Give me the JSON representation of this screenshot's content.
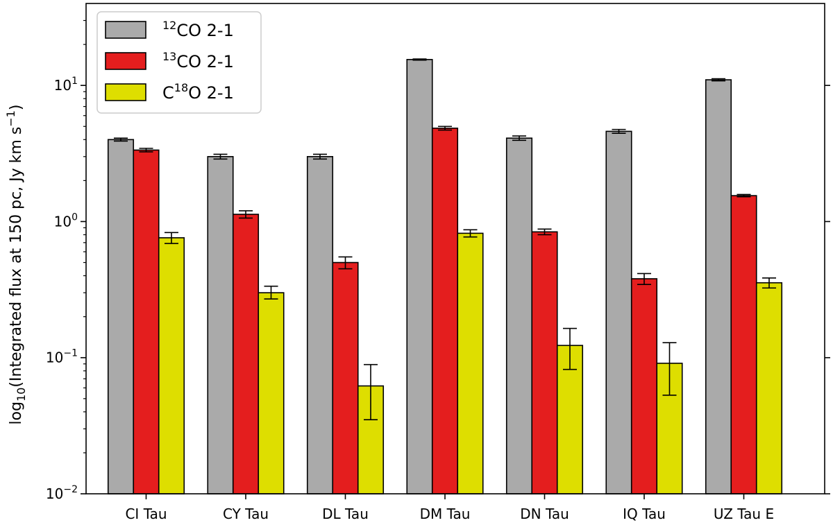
{
  "chart_data": {
    "type": "bar",
    "log_scale_y": true,
    "ylim": [
      0.01,
      40
    ],
    "grid": false,
    "legend_position": "top-left",
    "ylabel": {
      "prefix": "log",
      "sub": "10",
      "main": "(Integrated flux at 150 pc, Jy km s",
      "sup": "−1",
      "suffix": ")"
    },
    "y_ticks": [
      {
        "value": 0.01,
        "base": "10",
        "exp": "−2"
      },
      {
        "value": 0.1,
        "base": "10",
        "exp": "−1"
      },
      {
        "value": 1,
        "base": "10",
        "exp": "0"
      },
      {
        "value": 10,
        "base": "10",
        "exp": "1"
      }
    ],
    "categories": [
      "CI Tau",
      "CY Tau",
      "DL Tau",
      "DM Tau",
      "DN Tau",
      "IQ Tau",
      "UZ Tau E"
    ],
    "series": [
      {
        "name": "12CO 2-1",
        "label_sup": "12",
        "label_text": "CO 2-1",
        "label_sup_after": "",
        "label_tail": "",
        "color": "#aaaaaa",
        "values": [
          4.0,
          3.0,
          3.0,
          15.5,
          4.1,
          4.6,
          11.0
        ],
        "err_low": [
          0.1,
          0.12,
          0.12,
          0.15,
          0.15,
          0.15,
          0.2
        ],
        "err_high": [
          0.1,
          0.12,
          0.12,
          0.15,
          0.15,
          0.15,
          0.2
        ]
      },
      {
        "name": "13CO 2-1",
        "label_sup": "13",
        "label_text": "CO 2-1",
        "label_sup_after": "",
        "label_tail": "",
        "color": "#e41e1e",
        "values": [
          3.35,
          1.13,
          0.5,
          4.85,
          0.84,
          0.38,
          1.55
        ],
        "err_low": [
          0.1,
          0.07,
          0.05,
          0.15,
          0.04,
          0.035,
          0.03
        ],
        "err_high": [
          0.1,
          0.07,
          0.05,
          0.15,
          0.04,
          0.035,
          0.03
        ]
      },
      {
        "name": "C18O 2-1",
        "label_sup": "",
        "label_text": "C",
        "label_sup_after": "18",
        "label_tail": "O 2-1",
        "color": "#dede00",
        "values": [
          0.76,
          0.3,
          0.062,
          0.82,
          0.123,
          0.091,
          0.355
        ],
        "err_low": [
          0.07,
          0.03,
          0.027,
          0.05,
          0.041,
          0.038,
          0.03
        ],
        "err_high": [
          0.07,
          0.035,
          0.027,
          0.05,
          0.041,
          0.038,
          0.03
        ]
      }
    ]
  }
}
